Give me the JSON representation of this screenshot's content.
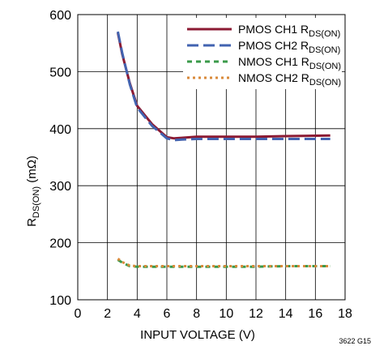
{
  "chart_data": {
    "type": "line",
    "title": "",
    "xlabel": "INPUT VOLTAGE (V)",
    "ylabel": {
      "main": "R",
      "sub": "DS(ON)",
      "unit": " (mΩ)"
    },
    "xlim": [
      0,
      18
    ],
    "ylim": [
      100,
      600
    ],
    "xticks": [
      0,
      2,
      4,
      6,
      8,
      10,
      12,
      14,
      16,
      18
    ],
    "yticks": [
      100,
      200,
      300,
      400,
      500,
      600
    ],
    "grid": true,
    "legend_position": "top-right",
    "footnote": "3622 G15",
    "series": [
      {
        "name": "PMOS CH1 RDS(ON)",
        "legend_main": "PMOS CH1 R",
        "legend_sub": "DS(ON)",
        "color": "#8b1a33",
        "dash": "solid",
        "x": [
          2.7,
          3.0,
          3.5,
          4.0,
          5.0,
          6.0,
          6.5,
          7.0,
          8.0,
          10.0,
          12.0,
          14.0,
          17.0
        ],
        "y": [
          568,
          530,
          480,
          440,
          408,
          385,
          383,
          384,
          386,
          386,
          386,
          387,
          388
        ]
      },
      {
        "name": "PMOS CH2 RDS(ON)",
        "legend_main": "PMOS CH2 R",
        "legend_sub": "DS(ON)",
        "color": "#4263b0",
        "dash": "long",
        "x": [
          2.7,
          3.0,
          3.5,
          4.0,
          5.0,
          6.0,
          6.5,
          7.0,
          8.0,
          10.0,
          12.0,
          14.0,
          17.0
        ],
        "y": [
          570,
          532,
          478,
          437,
          405,
          383,
          380,
          381,
          382,
          382,
          382,
          382,
          382
        ]
      },
      {
        "name": "NMOS CH1 RDS(ON)",
        "legend_main": "NMOS CH1 R",
        "legend_sub": "DS(ON)",
        "color": "#3a9a4a",
        "dash": "short",
        "x": [
          2.7,
          3.0,
          3.5,
          4.0,
          6.0,
          8.0,
          10.0,
          12.0,
          14.0,
          17.0
        ],
        "y": [
          170,
          165,
          159,
          158,
          158,
          158,
          158,
          158,
          159,
          159
        ]
      },
      {
        "name": "NMOS CH2 RDS(ON)",
        "legend_main": "NMOS CH2 R",
        "legend_sub": "DS(ON)",
        "color": "#d98a3a",
        "dash": "dotted",
        "x": [
          2.7,
          3.0,
          3.5,
          4.0,
          6.0,
          8.0,
          10.0,
          12.0,
          14.0,
          17.0
        ],
        "y": [
          172,
          166,
          160,
          159,
          159,
          159,
          159,
          159,
          159,
          159
        ]
      }
    ]
  }
}
